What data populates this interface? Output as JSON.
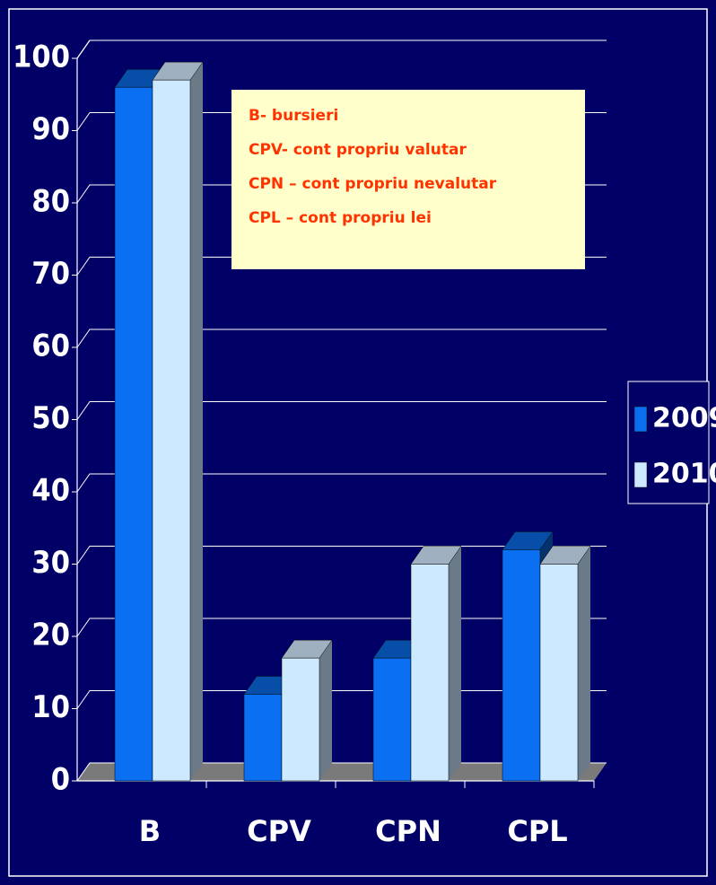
{
  "chart_data": {
    "type": "bar",
    "categories": [
      "B",
      "CPV",
      "CPN",
      "CPL"
    ],
    "series": [
      {
        "name": "2009",
        "color": "#0a6ff0",
        "values": [
          96,
          12,
          17,
          32
        ]
      },
      {
        "name": "2010",
        "color": "#cce9ff",
        "values": [
          97,
          17,
          30,
          30
        ]
      }
    ],
    "ylim": [
      0,
      100
    ],
    "yticks": [
      0,
      10,
      20,
      30,
      40,
      50,
      60,
      70,
      80,
      90,
      100
    ],
    "grid": true,
    "annotations": [
      "B- bursieri",
      "CPV- cont propriu valutar",
      "CPN – cont propriu nevalutar",
      "CPL – cont propriu lei"
    ],
    "legend": "right"
  }
}
